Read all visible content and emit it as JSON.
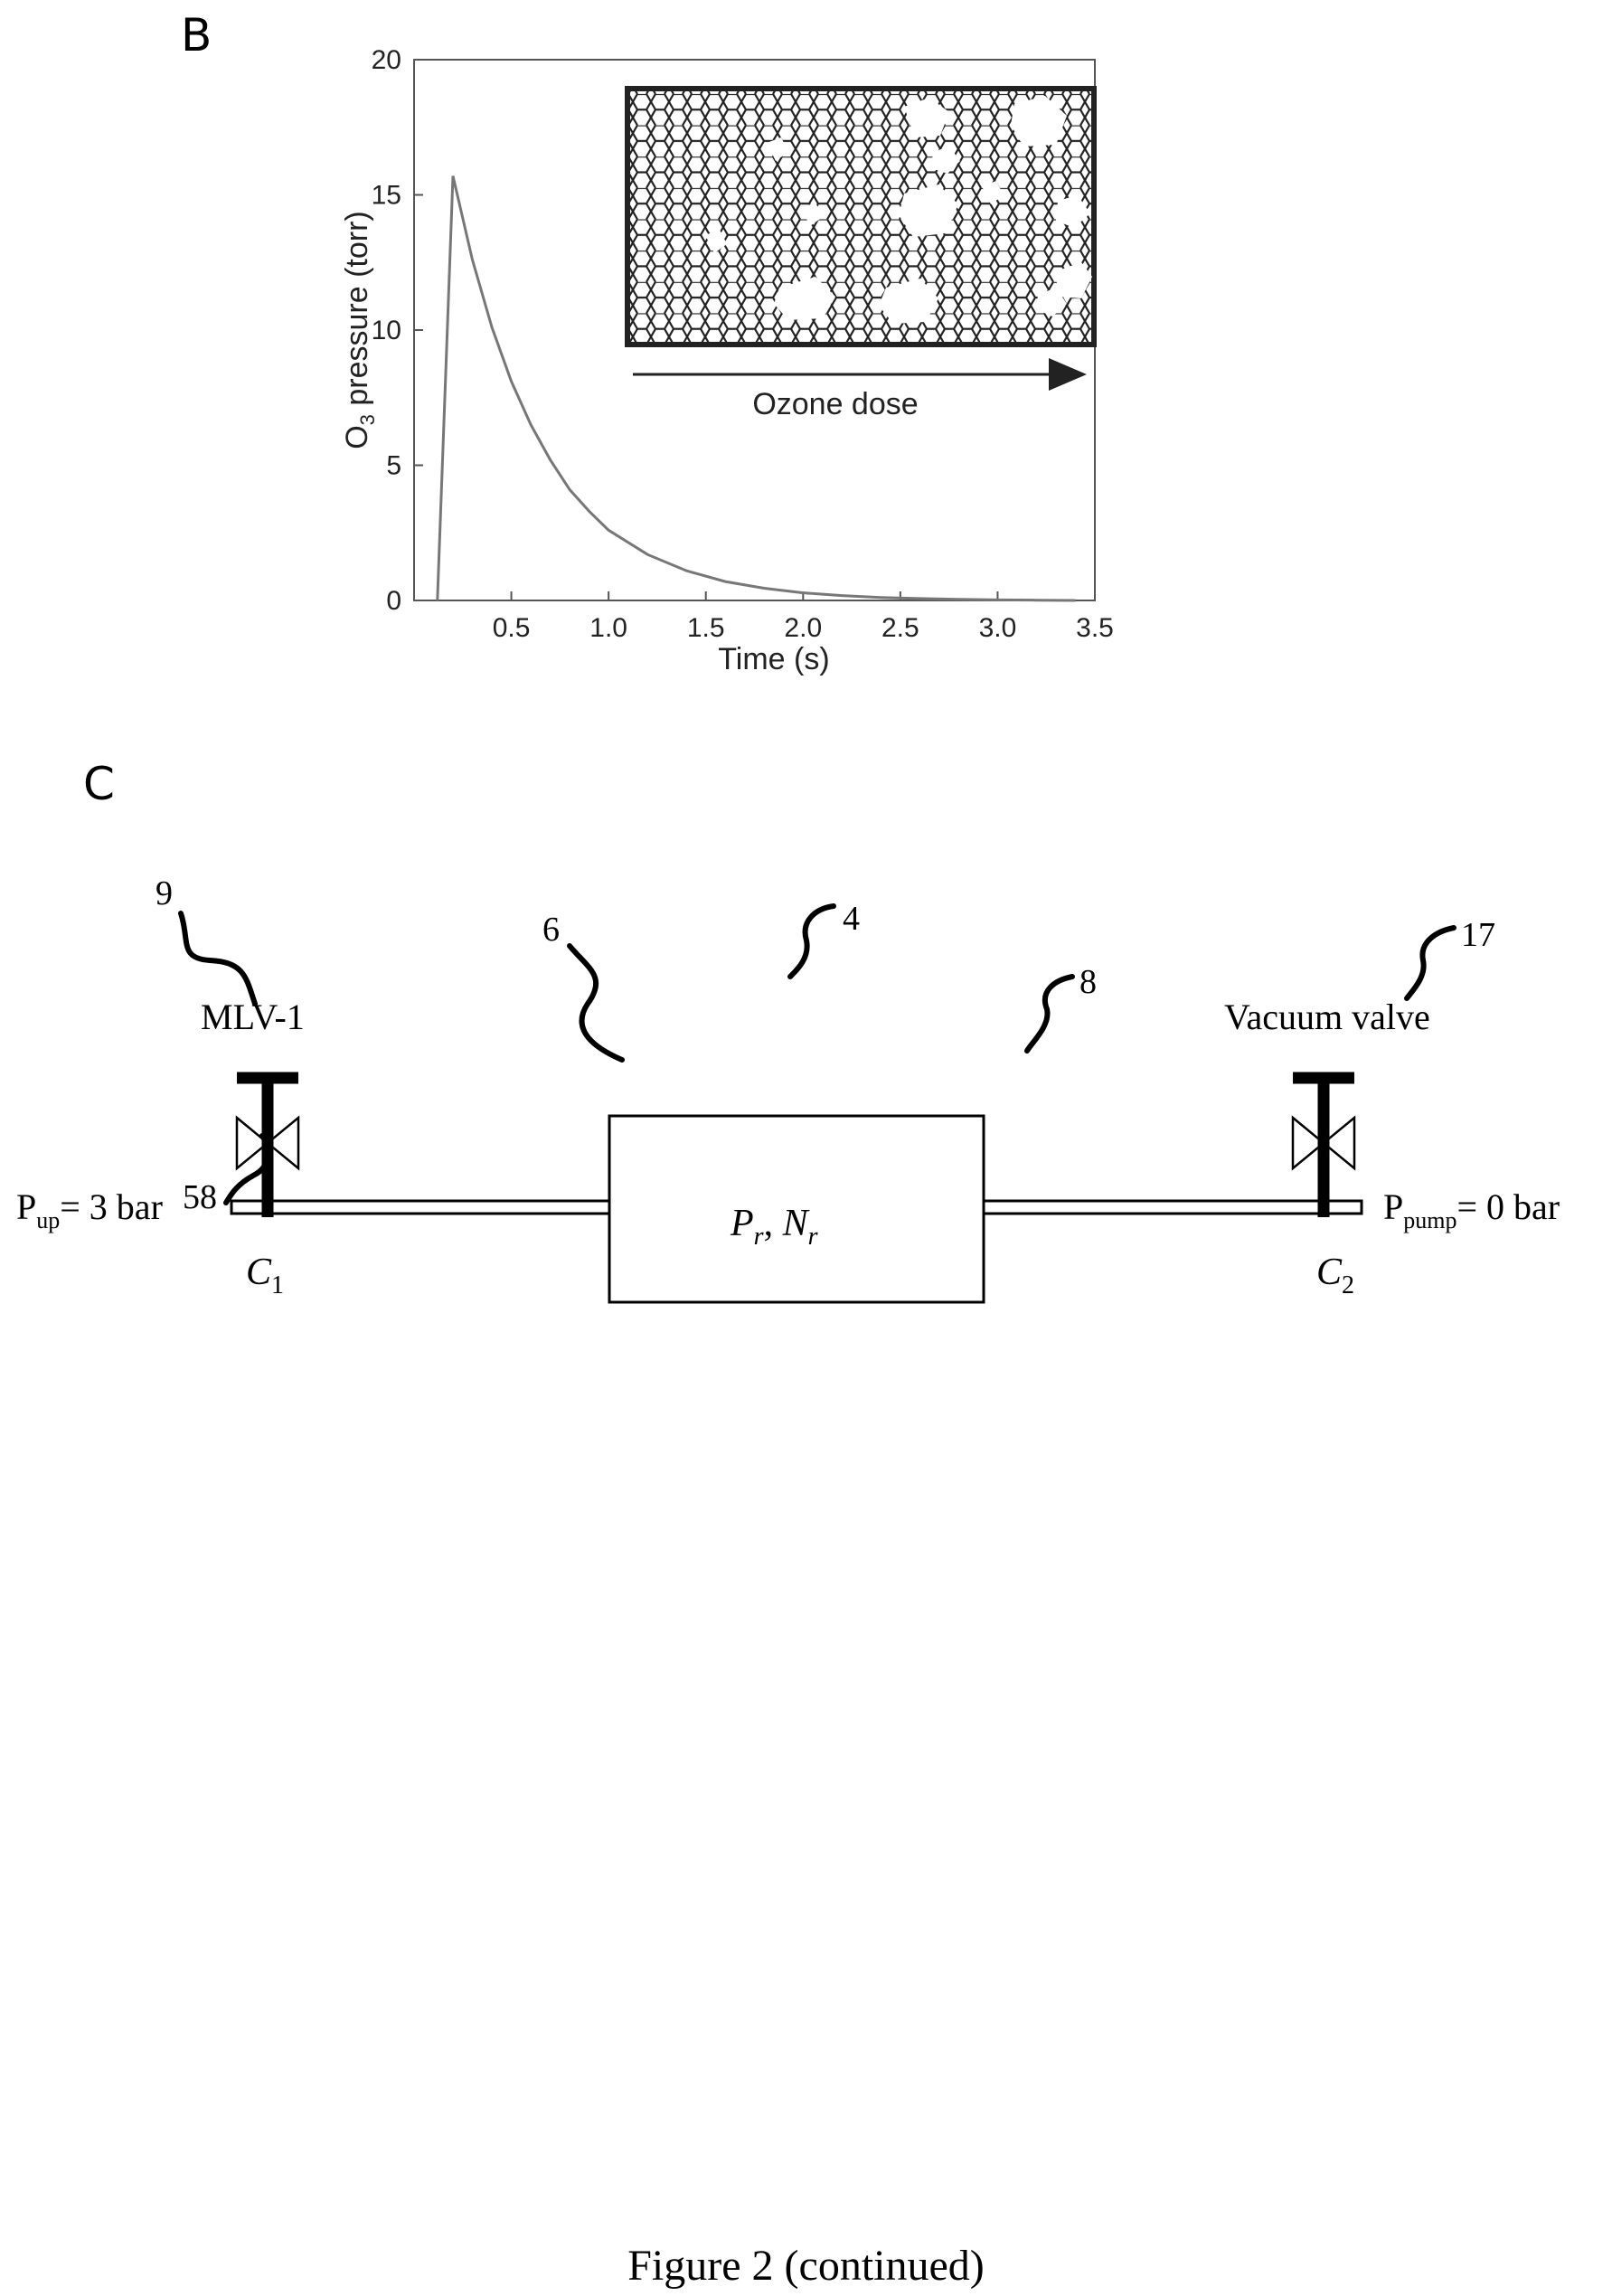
{
  "panel_b": {
    "letter": "B",
    "inset_label": "Ozone dose"
  },
  "chart_data": {
    "type": "line",
    "xlabel": "Time (s)",
    "ylabel": "O3 pressure (torr)",
    "ylabel_main": "O",
    "ylabel_sub": "3",
    "ylabel_rest": " pressure (torr)",
    "xlim": [
      0,
      3.5
    ],
    "ylim": [
      0,
      20
    ],
    "x_ticks": [
      "0.5",
      "1.0",
      "1.5",
      "2.0",
      "2.5",
      "3.0",
      "3.5"
    ],
    "y_ticks": [
      "0",
      "5",
      "10",
      "15",
      "20"
    ],
    "series": [
      {
        "x": [
          0.12,
          0.2,
          0.3,
          0.4,
          0.5,
          0.6,
          0.7,
          0.8,
          0.9,
          1.0,
          1.2,
          1.4,
          1.6,
          1.8,
          2.0,
          2.2,
          2.4,
          2.6,
          2.8,
          3.0,
          3.2,
          3.4
        ],
        "y": [
          0,
          15.7,
          12.6,
          10.1,
          8.1,
          6.5,
          5.2,
          4.1,
          3.3,
          2.6,
          1.7,
          1.1,
          0.7,
          0.45,
          0.28,
          0.18,
          0.11,
          0.07,
          0.04,
          0.02,
          0.01,
          0.0
        ]
      }
    ],
    "grid": false
  },
  "panel_c": {
    "letter": "C",
    "ref_9": "9",
    "ref_6": "6",
    "ref_4": "4",
    "ref_8": "8",
    "ref_17": "17",
    "ref_58": "58",
    "mlv_label": "MLV-1",
    "vacuum_label": "Vacuum valve",
    "p_up_main": "P",
    "p_up_sub": "up",
    "p_up_value": "= 3 bar",
    "p_pump_main": "P",
    "p_pump_sub": "pump",
    "p_pump_value": "= 0 bar",
    "chamber_p": "P",
    "chamber_p_sub": "r",
    "chamber_sep": ", ",
    "chamber_n": "N",
    "chamber_n_sub": "r",
    "c1_main": "C",
    "c1_sub": "1",
    "c2_main": "C",
    "c2_sub": "2"
  },
  "caption": "Figure 2 (continued)"
}
